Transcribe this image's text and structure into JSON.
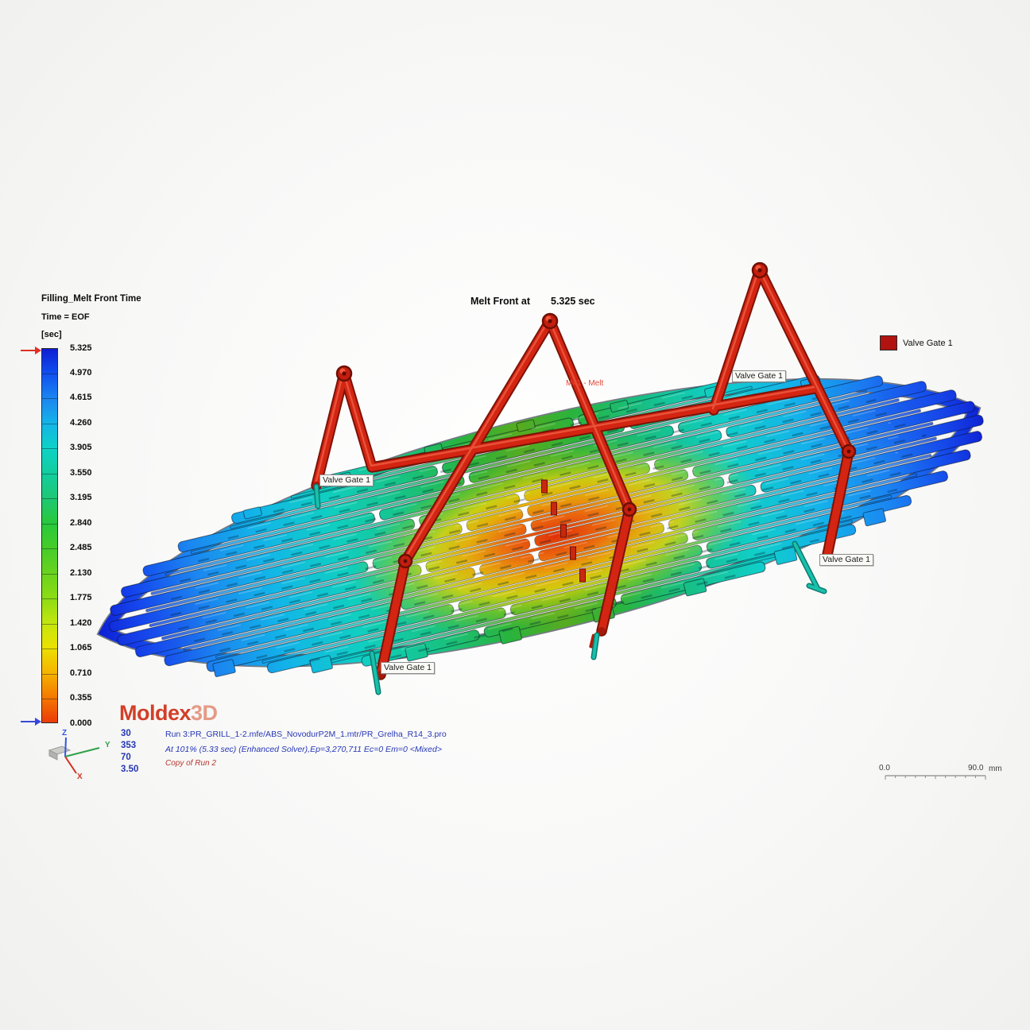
{
  "legend": {
    "title": "Filling_Melt Front Time",
    "subtitle": "Time = EOF",
    "unit": "[sec]",
    "ticks": [
      "5.325",
      "4.970",
      "4.615",
      "4.260",
      "3.905",
      "3.550",
      "3.195",
      "2.840",
      "2.485",
      "2.130",
      "1.775",
      "1.420",
      "1.065",
      "0.710",
      "0.355",
      "0.000"
    ],
    "palette": [
      "#0d1ed2",
      "#1150f0",
      "#1b86f0",
      "#14b4e8",
      "#0fd2c6",
      "#12cd9e",
      "#1ec874",
      "#28c83c",
      "#46cd28",
      "#69d21e",
      "#8cdc14",
      "#c3e60f",
      "#ebe100",
      "#f5b400",
      "#f57800",
      "#eb3c0a"
    ]
  },
  "header": {
    "melt_front_label": "Melt Front at",
    "melt_front_value": "5.325 sec"
  },
  "gate_legend": {
    "label": "Valve Gate 1",
    "color": "#b01310"
  },
  "model": {
    "gate_tags": [
      "Valve Gate 1",
      "Valve Gate 1",
      "Valve Gate 1",
      "Valve Gate 1"
    ],
    "melt_entrance_label": "M#1 - Melt"
  },
  "logo": {
    "part1": "Moldex",
    "part2": "3D"
  },
  "footer": {
    "numbers": [
      "30",
      "353",
      "70",
      "3.50"
    ],
    "run_line": "Run 3:PR_GRILL_1-2.mfe/ABS_NovodurP2M_1.mtr/PR_Grelha_R14_3.pro",
    "status_line": "At 101% (5.33 sec) (Enhanced Solver),Ep=3,270,711 Ec=0 Em=0  <Mixed>",
    "copy_line": "Copy of Run 2"
  },
  "axes": {
    "x": "X",
    "y": "Y",
    "z": "Z"
  },
  "scalebar": {
    "start": "0.0",
    "end": "90.0",
    "unit": "mm"
  },
  "colors": {
    "runner_red": "#d32512",
    "runner_dark": "#7e1206",
    "runner_highlight": "#f4694f",
    "gate_pin_teal": "#19c0ac",
    "text_blue": "#2637b5",
    "note_red": "#b5372c",
    "logo_red": "#d23f28",
    "logo_salmon": "#e59a85",
    "arrow_top": "#e03024",
    "arrow_bottom": "#3848d8"
  }
}
